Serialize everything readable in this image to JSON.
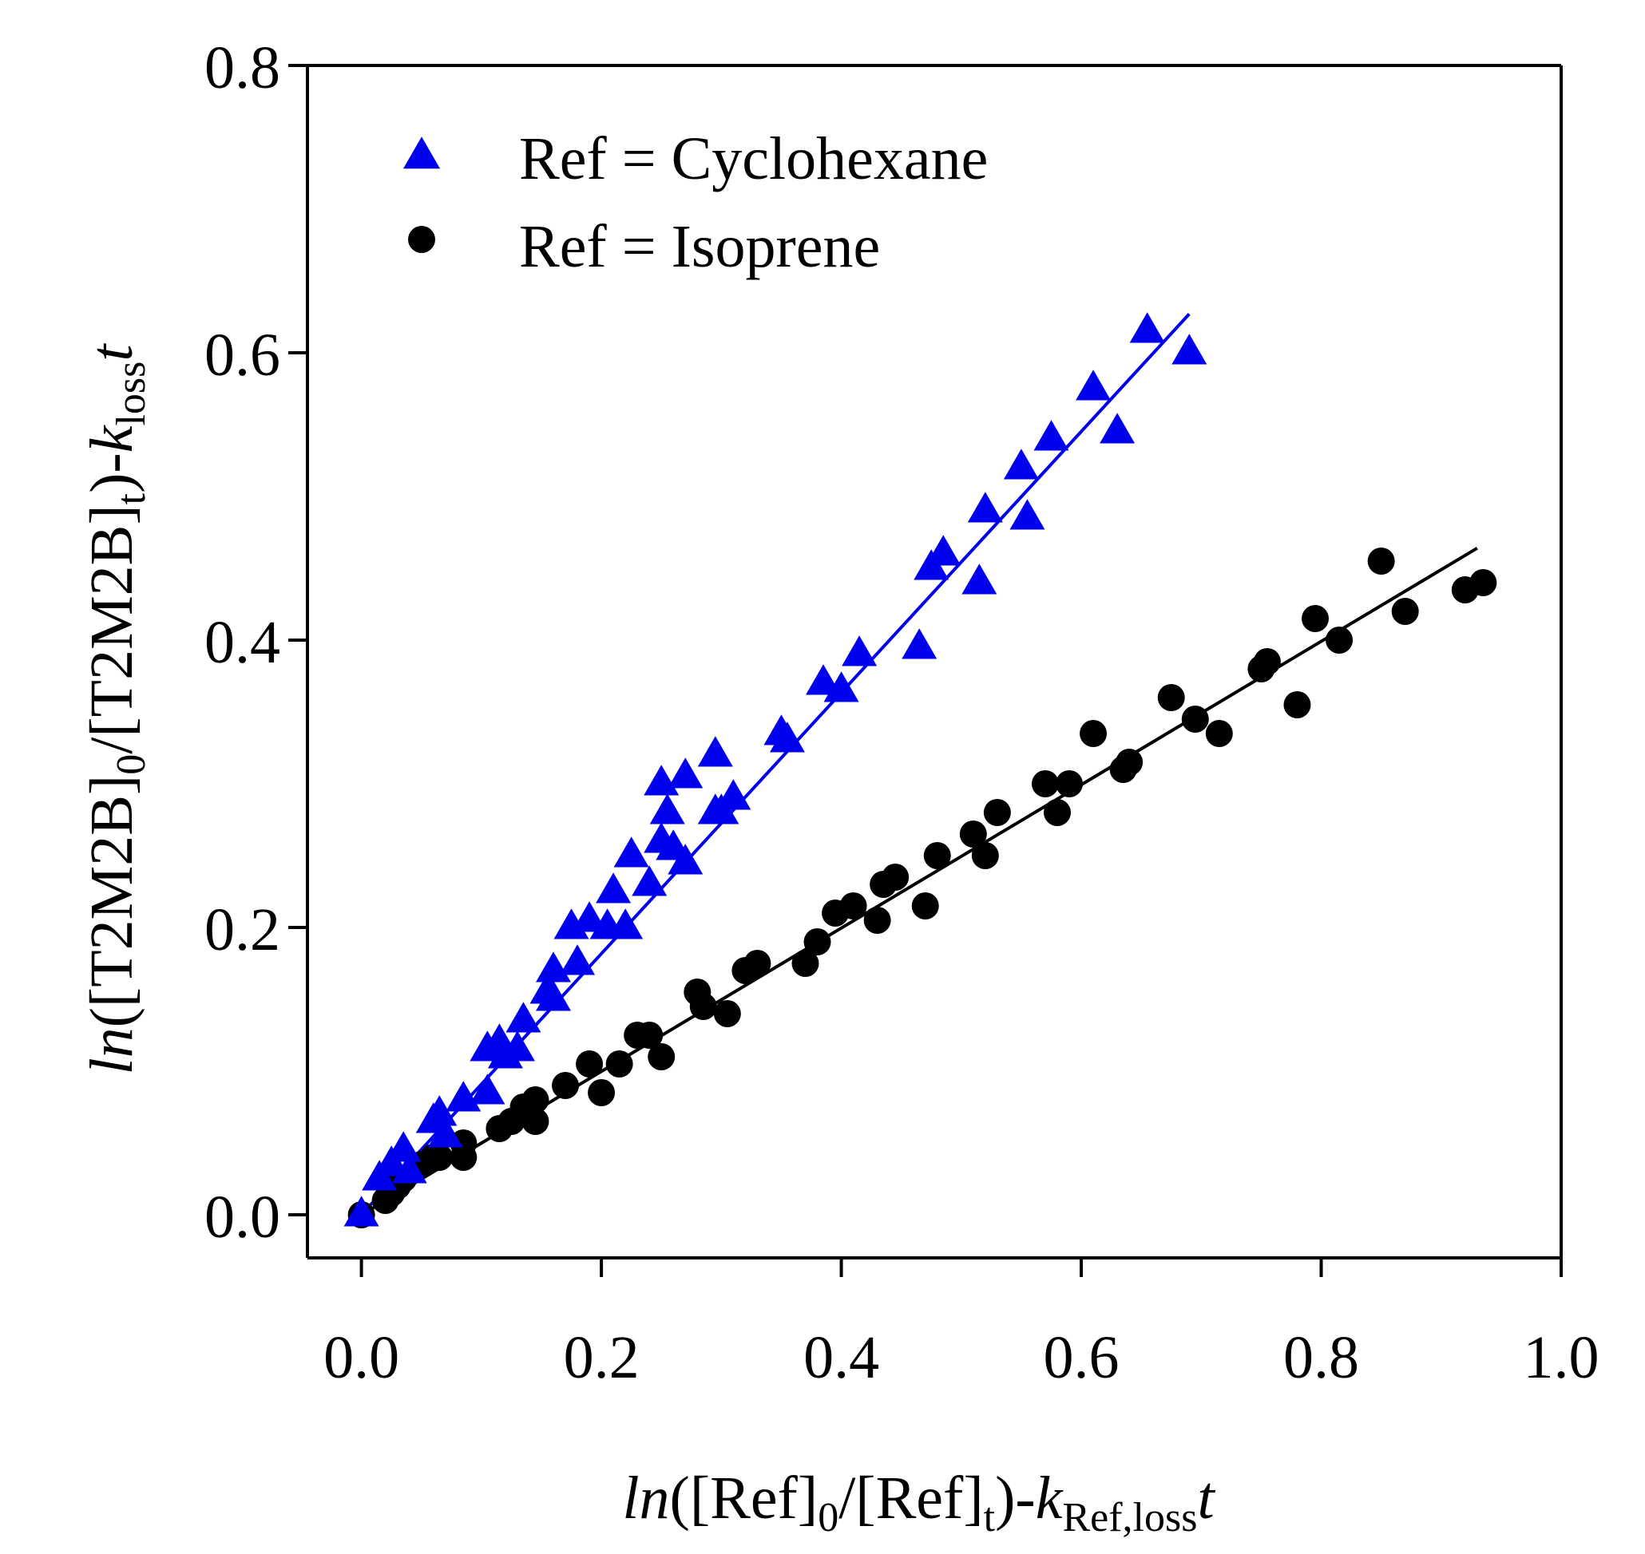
{
  "chart_data": {
    "type": "scatter",
    "title": "",
    "xlabel": {
      "parts": [
        {
          "text": "ln",
          "style": "italic"
        },
        {
          "text": "([Ref]"
        },
        {
          "text": "0",
          "style": "sub"
        },
        {
          "text": "/[Ref]"
        },
        {
          "text": "t",
          "style": "sub"
        },
        {
          "text": ")-"
        },
        {
          "text": "k",
          "style": "italic"
        },
        {
          "text": "Ref,loss",
          "style": "sub"
        },
        {
          "text": "t",
          "style": "italic"
        }
      ]
    },
    "ylabel": {
      "parts": [
        {
          "text": "ln",
          "style": "italic"
        },
        {
          "text": "([T2M2B]"
        },
        {
          "text": "0",
          "style": "sub"
        },
        {
          "text": "/[T2M2B]"
        },
        {
          "text": "t",
          "style": "sub"
        },
        {
          "text": ")-"
        },
        {
          "text": "k",
          "style": "italic"
        },
        {
          "text": "loss",
          "style": "sub"
        },
        {
          "text": "t",
          "style": "italic"
        }
      ]
    },
    "xlim": [
      -0.045,
      1.0
    ],
    "ylim": [
      -0.03,
      0.8
    ],
    "xticks": [
      0.0,
      0.2,
      0.4,
      0.6,
      0.8,
      1.0
    ],
    "xtick_labels": [
      "0.0",
      "0.2",
      "0.4",
      "0.6",
      "0.8",
      "1.0"
    ],
    "yticks": [
      0.0,
      0.2,
      0.4,
      0.6,
      0.8
    ],
    "ytick_labels": [
      "0.0",
      "0.2",
      "0.4",
      "0.6",
      "0.8"
    ],
    "grid": false,
    "legend_position": "top-left",
    "series": [
      {
        "name": "Ref = Cyclohexane",
        "marker": "triangle",
        "color": "#0000ee",
        "fit": {
          "x": [
            0.0,
            0.69
          ],
          "y": [
            0.0,
            0.627
          ]
        },
        "points": [
          [
            0.0,
            0.0
          ],
          [
            0.015,
            0.025
          ],
          [
            0.025,
            0.035
          ],
          [
            0.035,
            0.045
          ],
          [
            0.04,
            0.03
          ],
          [
            0.06,
            0.065
          ],
          [
            0.065,
            0.07
          ],
          [
            0.07,
            0.055
          ],
          [
            0.085,
            0.08
          ],
          [
            0.105,
            0.115
          ],
          [
            0.105,
            0.085
          ],
          [
            0.115,
            0.12
          ],
          [
            0.12,
            0.11
          ],
          [
            0.13,
            0.115
          ],
          [
            0.135,
            0.135
          ],
          [
            0.155,
            0.155
          ],
          [
            0.16,
            0.17
          ],
          [
            0.16,
            0.15
          ],
          [
            0.175,
            0.2
          ],
          [
            0.18,
            0.175
          ],
          [
            0.19,
            0.205
          ],
          [
            0.205,
            0.2
          ],
          [
            0.21,
            0.225
          ],
          [
            0.22,
            0.2
          ],
          [
            0.225,
            0.25
          ],
          [
            0.24,
            0.23
          ],
          [
            0.25,
            0.26
          ],
          [
            0.25,
            0.3
          ],
          [
            0.255,
            0.28
          ],
          [
            0.26,
            0.255
          ],
          [
            0.27,
            0.305
          ],
          [
            0.27,
            0.245
          ],
          [
            0.295,
            0.32
          ],
          [
            0.295,
            0.28
          ],
          [
            0.3,
            0.28
          ],
          [
            0.31,
            0.29
          ],
          [
            0.35,
            0.335
          ],
          [
            0.355,
            0.33
          ],
          [
            0.385,
            0.37
          ],
          [
            0.4,
            0.365
          ],
          [
            0.415,
            0.39
          ],
          [
            0.465,
            0.395
          ],
          [
            0.475,
            0.45
          ],
          [
            0.485,
            0.46
          ],
          [
            0.515,
            0.44
          ],
          [
            0.52,
            0.49
          ],
          [
            0.55,
            0.52
          ],
          [
            0.555,
            0.485
          ],
          [
            0.575,
            0.54
          ],
          [
            0.61,
            0.575
          ],
          [
            0.63,
            0.545
          ],
          [
            0.655,
            0.615
          ],
          [
            0.69,
            0.6
          ]
        ]
      },
      {
        "name": "Ref = Isoprene",
        "marker": "circle",
        "color": "#000000",
        "fit": {
          "x": [
            0.0,
            0.93
          ],
          "y": [
            0.0,
            0.464
          ]
        },
        "points": [
          [
            0.0,
            0.0
          ],
          [
            0.02,
            0.01
          ],
          [
            0.025,
            0.015
          ],
          [
            0.03,
            0.02
          ],
          [
            0.035,
            0.025
          ],
          [
            0.05,
            0.035
          ],
          [
            0.06,
            0.04
          ],
          [
            0.065,
            0.04
          ],
          [
            0.085,
            0.05
          ],
          [
            0.085,
            0.04
          ],
          [
            0.115,
            0.06
          ],
          [
            0.125,
            0.065
          ],
          [
            0.135,
            0.075
          ],
          [
            0.145,
            0.065
          ],
          [
            0.145,
            0.08
          ],
          [
            0.17,
            0.09
          ],
          [
            0.19,
            0.105
          ],
          [
            0.2,
            0.085
          ],
          [
            0.215,
            0.105
          ],
          [
            0.23,
            0.125
          ],
          [
            0.24,
            0.125
          ],
          [
            0.25,
            0.11
          ],
          [
            0.28,
            0.155
          ],
          [
            0.285,
            0.145
          ],
          [
            0.305,
            0.14
          ],
          [
            0.32,
            0.17
          ],
          [
            0.33,
            0.175
          ],
          [
            0.37,
            0.175
          ],
          [
            0.38,
            0.19
          ],
          [
            0.395,
            0.21
          ],
          [
            0.41,
            0.215
          ],
          [
            0.43,
            0.205
          ],
          [
            0.435,
            0.23
          ],
          [
            0.445,
            0.235
          ],
          [
            0.47,
            0.215
          ],
          [
            0.48,
            0.25
          ],
          [
            0.51,
            0.265
          ],
          [
            0.52,
            0.25
          ],
          [
            0.53,
            0.28
          ],
          [
            0.57,
            0.3
          ],
          [
            0.58,
            0.28
          ],
          [
            0.59,
            0.3
          ],
          [
            0.61,
            0.335
          ],
          [
            0.635,
            0.31
          ],
          [
            0.64,
            0.315
          ],
          [
            0.675,
            0.36
          ],
          [
            0.695,
            0.345
          ],
          [
            0.715,
            0.335
          ],
          [
            0.75,
            0.38
          ],
          [
            0.755,
            0.385
          ],
          [
            0.78,
            0.355
          ],
          [
            0.795,
            0.415
          ],
          [
            0.815,
            0.4
          ],
          [
            0.85,
            0.455
          ],
          [
            0.87,
            0.42
          ],
          [
            0.92,
            0.435
          ],
          [
            0.935,
            0.44
          ]
        ]
      }
    ]
  }
}
